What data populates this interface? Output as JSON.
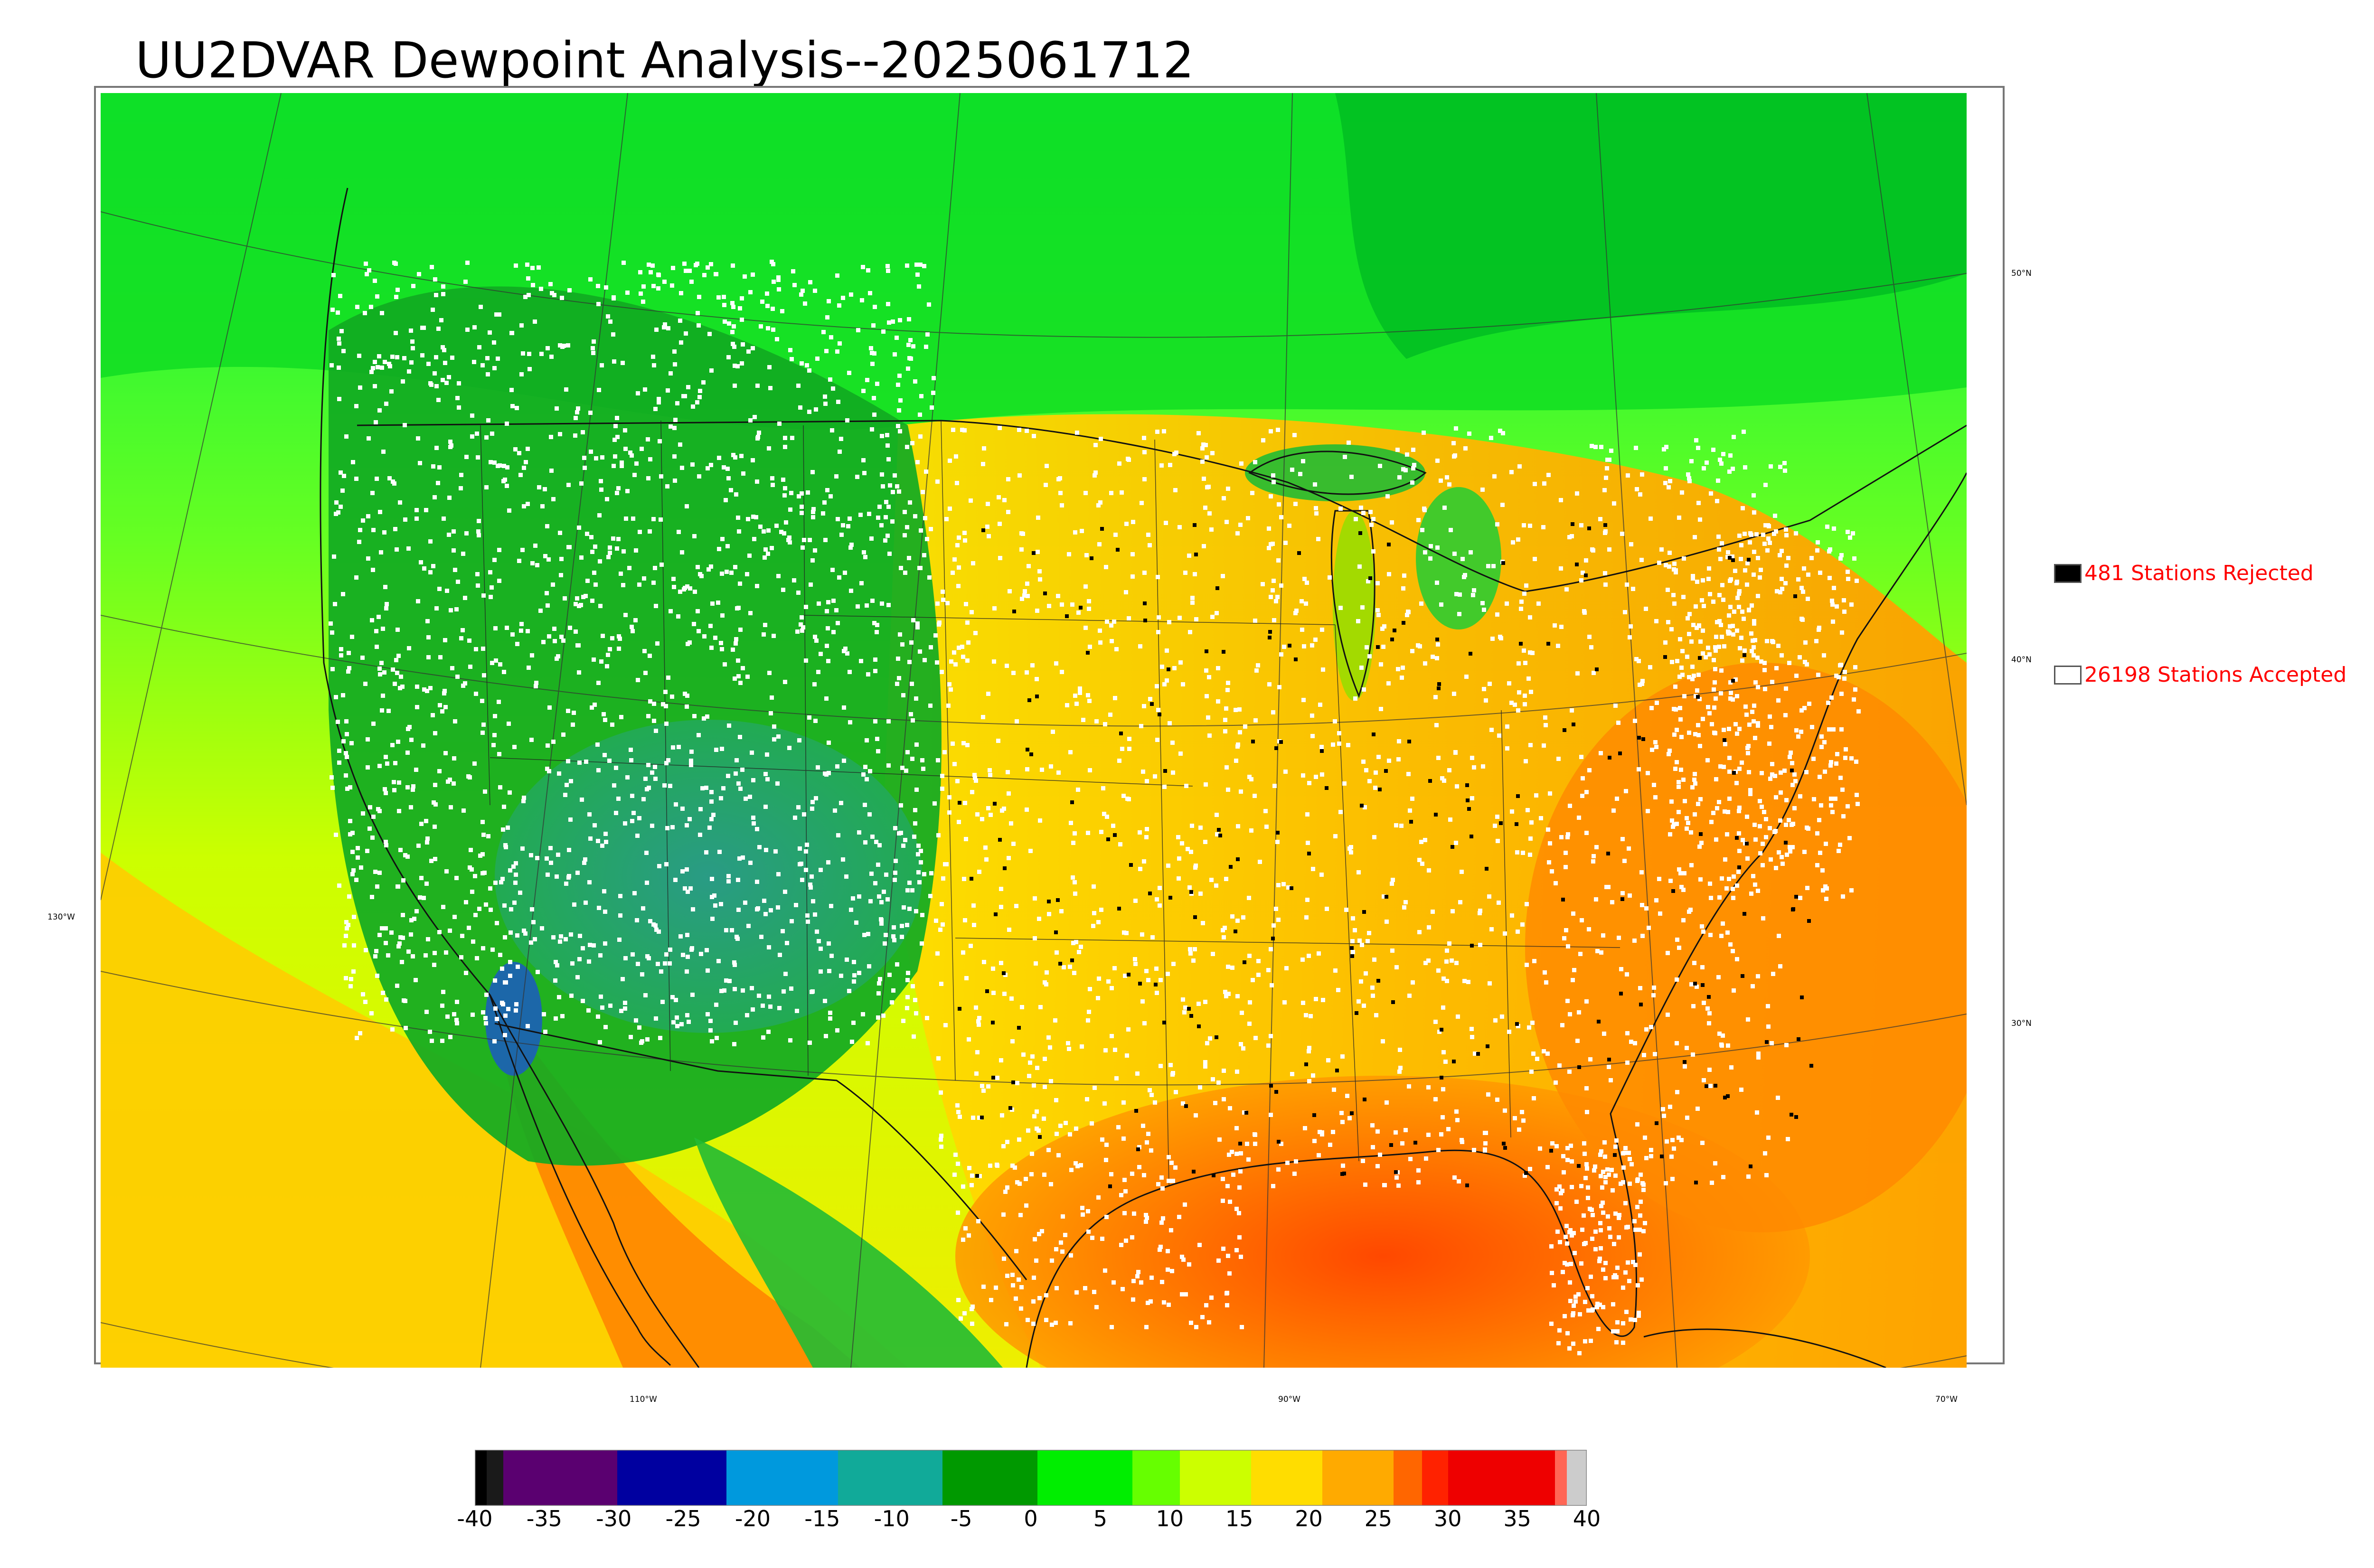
{
  "title": "UU2DVAR Dewpoint Analysis--2025061712",
  "map": {
    "lat_labels": [
      "50°N",
      "40°N",
      "30°N"
    ],
    "lon_labels": [
      "130°W",
      "110°W",
      "90°W",
      "70°W"
    ]
  },
  "legend": {
    "rejected_label": "481 Stations Rejected",
    "accepted_label": "26198 Stations Accepted",
    "rejected_color": "#000000",
    "accepted_color": "#ffffff",
    "text_color": "#ff0000"
  },
  "colorbar": {
    "ticks": [
      "-40",
      "-35",
      "-30",
      "-25",
      "-20",
      "-15",
      "-10",
      "-5",
      "0",
      "5",
      "10",
      "15",
      "20",
      "25",
      "30",
      "35",
      "40"
    ],
    "range": [
      -40,
      40
    ]
  }
}
